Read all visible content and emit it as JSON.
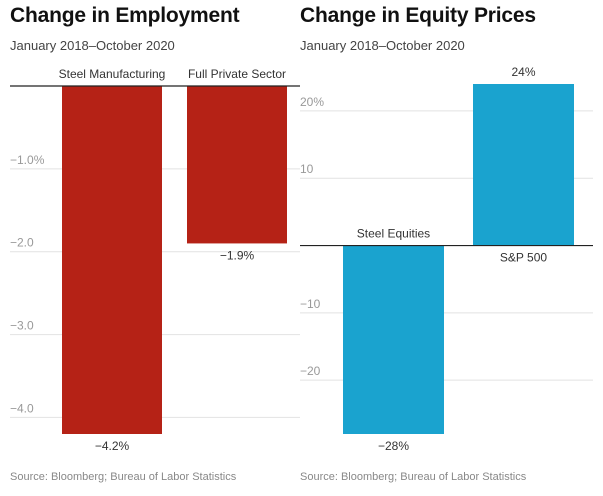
{
  "chart_data": [
    {
      "type": "bar",
      "title": "Change in Employment",
      "subtitle": "January 2018–October 2020",
      "source": "Source: Bloomberg; Bureau of Labor Statistics",
      "categories": [
        "Steel Manufacturing",
        "Full Private Sector"
      ],
      "values": [
        -4.2,
        -1.9
      ],
      "value_labels": [
        "−4.2%",
        "−1.9%"
      ],
      "ylim": [
        -4.2,
        0
      ],
      "yticks": [
        -1,
        -2,
        -3,
        -4
      ],
      "ytick_labels": [
        "−1.0%",
        "−2.0",
        "−3.0",
        "−4.0"
      ],
      "grid": true,
      "bar_color": "#b52216"
    },
    {
      "type": "bar",
      "title": "Change in Equity Prices",
      "subtitle": "January 2018–October 2020",
      "source": "Source: Bloomberg; Bureau of Labor Statistics",
      "categories": [
        "Steel Equities",
        "S&P 500"
      ],
      "values": [
        -28,
        24
      ],
      "value_labels": [
        "−28%",
        "24%"
      ],
      "ylim": [
        -28,
        24
      ],
      "yticks": [
        20,
        10,
        -10,
        -20
      ],
      "ytick_labels": [
        "20%",
        "10",
        "−10",
        "−20"
      ],
      "grid": true,
      "bar_color": "#1aa3cf"
    }
  ]
}
